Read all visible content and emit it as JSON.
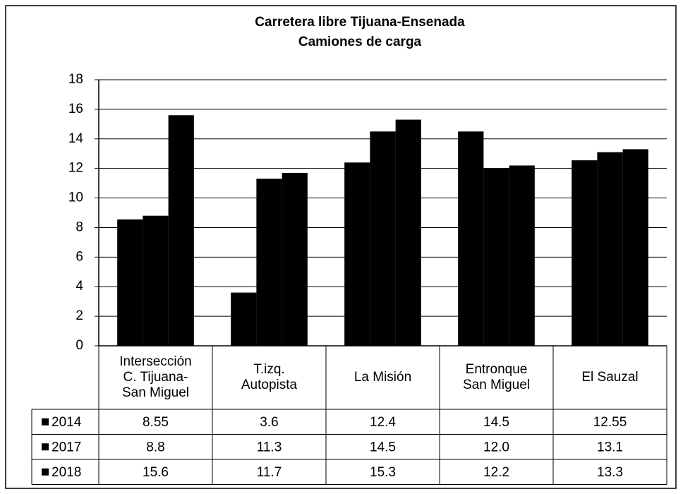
{
  "chart_data": {
    "type": "bar",
    "title": "Carretera libre Tijuana-Ensenada",
    "subtitle": "Camiones de carga",
    "categories": [
      "Intersección\nC. Tijuana-\nSan Miguel",
      "T.izq.\nAutopista",
      "La Misión",
      "Entronque\nSan Miguel",
      "El Sauzal"
    ],
    "series": [
      {
        "name": "2014",
        "color": "#000000",
        "values": [
          8.55,
          3.6,
          12.4,
          14.5,
          12.55
        ],
        "value_labels": [
          "8.55",
          "3.6",
          "12.4",
          "14.5",
          "12.55"
        ]
      },
      {
        "name": "2017",
        "color": "#000000",
        "values": [
          8.8,
          11.3,
          14.5,
          12,
          13.1
        ],
        "value_labels": [
          "8.8",
          "11.3",
          "14.5",
          "12.0",
          "13.1"
        ]
      },
      {
        "name": "2018",
        "color": "#000000",
        "values": [
          15.6,
          11.7,
          15.3,
          12.2,
          13.3
        ],
        "value_labels": [
          "15.6",
          "11.7",
          "15.3",
          "12.2",
          "13.3"
        ]
      }
    ],
    "ylim": [
      0,
      18
    ],
    "yticks": [
      0,
      2,
      4,
      6,
      8,
      10,
      12,
      14,
      16,
      18
    ],
    "grid": true
  }
}
